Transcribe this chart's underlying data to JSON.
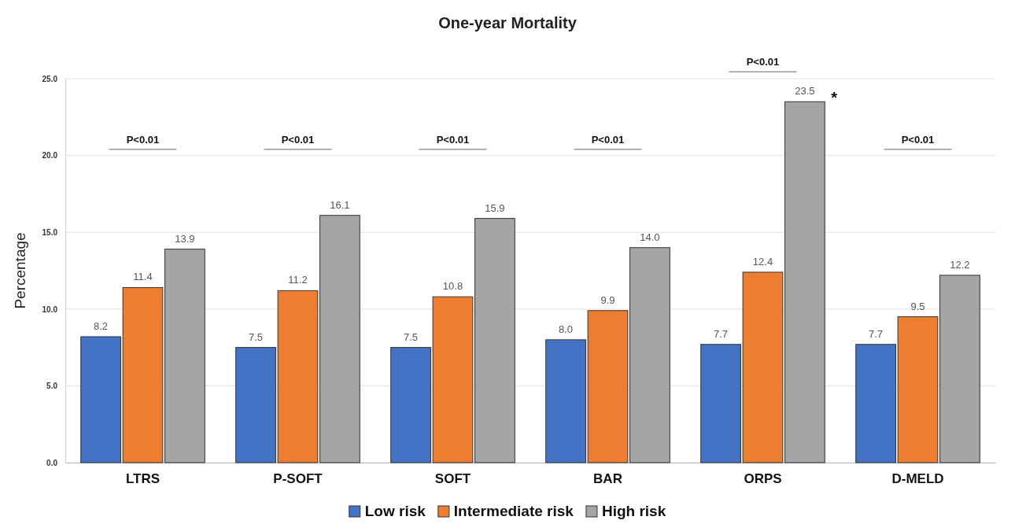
{
  "chart_data": {
    "type": "bar",
    "title": "One-year Mortality",
    "ylabel": "Percentage",
    "categories": [
      "LTRS",
      "P-SOFT",
      "SOFT",
      "BAR",
      "ORPS",
      "D-MELD"
    ],
    "series": [
      {
        "name": "Low risk",
        "color": "#4472c4",
        "values": [
          8.2,
          7.5,
          7.5,
          8.0,
          7.7,
          7.7
        ],
        "value_labels": [
          "8.2",
          "7.5",
          "7.5",
          "8.0",
          "7.7",
          "7.7"
        ]
      },
      {
        "name": "Intermediate risk",
        "color": "#ed7d31",
        "values": [
          11.4,
          11.2,
          10.8,
          9.9,
          12.4,
          9.5
        ],
        "value_labels": [
          "11.4",
          "11.2",
          "10.8",
          "9.9",
          "12.4",
          "9.5"
        ]
      },
      {
        "name": "High risk",
        "color": "#a5a5a5",
        "values": [
          13.9,
          16.1,
          15.9,
          14.0,
          23.5,
          12.2
        ],
        "value_labels": [
          "13.9",
          "16.1",
          "15.9",
          "14.0",
          "23.5",
          "12.2"
        ]
      }
    ],
    "ylim": [
      0,
      25
    ],
    "yticks": [
      {
        "value": 0,
        "label": "0.0"
      },
      {
        "value": 5,
        "label": "5.0"
      },
      {
        "value": 10,
        "label": "10.0"
      },
      {
        "value": 15,
        "label": "15.0"
      },
      {
        "value": 20,
        "label": "20.0"
      },
      {
        "value": 25,
        "label": "25.0"
      }
    ],
    "grid": "y",
    "legend": "bottom",
    "annotations": [
      "P<0.01",
      "P<0.01",
      "P<0.01",
      "P<0.01",
      "P<0.01",
      "P<0.01",
      "*"
    ]
  }
}
